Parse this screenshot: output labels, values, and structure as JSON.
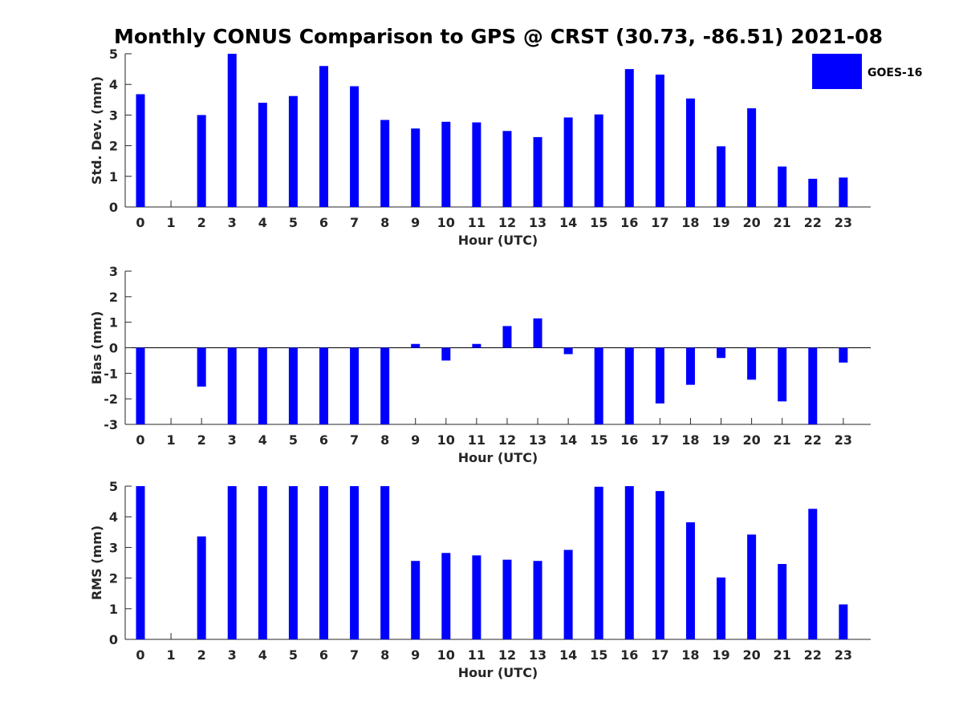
{
  "title": "Monthly CONUS Comparison to GPS @ CRST (30.73, -86.51) 2021-08",
  "legend": {
    "label": "GOES-16",
    "color": "#0000ff"
  },
  "chart_data": [
    {
      "type": "bar",
      "xlabel": "Hour (UTC)",
      "ylabel": "Std. Dev. (mm)",
      "ylim": [
        0,
        5
      ],
      "yticks": [
        "0",
        "1",
        "2",
        "3",
        "4",
        "5"
      ],
      "categories": [
        "0",
        "1",
        "2",
        "3",
        "4",
        "5",
        "6",
        "7",
        "8",
        "9",
        "10",
        "11",
        "12",
        "13",
        "14",
        "15",
        "16",
        "17",
        "18",
        "19",
        "20",
        "21",
        "22",
        "23"
      ],
      "series": [
        {
          "name": "GOES-16",
          "values": [
            3.68,
            null,
            3.0,
            5.0,
            3.4,
            3.62,
            4.6,
            3.94,
            2.84,
            2.56,
            2.78,
            2.76,
            2.48,
            2.28,
            2.92,
            3.02,
            4.5,
            4.32,
            3.54,
            1.98,
            3.22,
            1.32,
            0.92,
            0.96
          ]
        }
      ],
      "grid": false
    },
    {
      "type": "bar",
      "xlabel": "Hour (UTC)",
      "ylabel": "Bias (mm)",
      "ylim": [
        -3,
        3
      ],
      "yticks": [
        "-3",
        "-2",
        "-1",
        "0",
        "1",
        "2",
        "3"
      ],
      "categories": [
        "0",
        "1",
        "2",
        "3",
        "4",
        "5",
        "6",
        "7",
        "8",
        "9",
        "10",
        "11",
        "12",
        "13",
        "14",
        "15",
        "16",
        "17",
        "18",
        "19",
        "20",
        "21",
        "22",
        "23"
      ],
      "series": [
        {
          "name": "GOES-16",
          "values": [
            -3.0,
            null,
            -1.52,
            -3.0,
            -3.0,
            -3.0,
            -3.0,
            -3.0,
            -3.0,
            0.15,
            -0.5,
            0.15,
            0.85,
            1.15,
            -0.25,
            -3.0,
            -3.0,
            -2.18,
            -1.45,
            -0.4,
            -1.25,
            -2.1,
            -3.0,
            -0.58
          ]
        }
      ],
      "grid": false
    },
    {
      "type": "bar",
      "xlabel": "Hour (UTC)",
      "ylabel": "RMS (mm)",
      "ylim": [
        0,
        5
      ],
      "yticks": [
        "0",
        "1",
        "2",
        "3",
        "4",
        "5"
      ],
      "categories": [
        "0",
        "1",
        "2",
        "3",
        "4",
        "5",
        "6",
        "7",
        "8",
        "9",
        "10",
        "11",
        "12",
        "13",
        "14",
        "15",
        "16",
        "17",
        "18",
        "19",
        "20",
        "21",
        "22",
        "23"
      ],
      "series": [
        {
          "name": "GOES-16",
          "values": [
            5.0,
            null,
            3.36,
            5.0,
            5.0,
            5.0,
            5.0,
            5.0,
            5.0,
            2.56,
            2.82,
            2.74,
            2.6,
            2.56,
            2.92,
            4.98,
            5.0,
            4.84,
            3.82,
            2.02,
            3.42,
            2.46,
            4.26,
            1.14
          ]
        }
      ],
      "grid": false
    }
  ]
}
